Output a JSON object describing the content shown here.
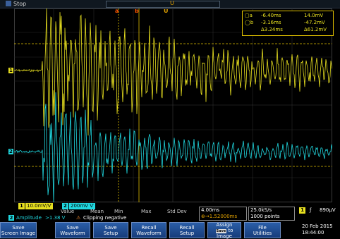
{
  "status": {
    "run_state": "Stop",
    "record_marker": "U"
  },
  "cursor_tags": [
    "a",
    "b",
    "U"
  ],
  "cursor_readout": {
    "row1": {
      "a": "-6.40ms",
      "b": "14.0mV"
    },
    "row2": {
      "a": "-3.16ms",
      "b": "-47.2mV"
    },
    "row3": {
      "a": "Δ3.24ms",
      "b": "Δ61.2mV"
    }
  },
  "channels": {
    "ch1": {
      "marker": "1",
      "scale": "10.0mV/Ѵ",
      "color": "#e8e020"
    },
    "ch2": {
      "marker": "2",
      "scale": "200mV Ѵ",
      "color": "#20d8e0"
    }
  },
  "measurements": {
    "headers": [
      "Value",
      "Mean",
      "Min",
      "Max",
      "Std Dev"
    ],
    "row": {
      "channel": "2",
      "name": "Amplitude",
      "value": ">1.38 V",
      "warning_icon": "⚠",
      "warning": "Clipping negative"
    }
  },
  "horizontal": {
    "time_div": "4.00ms",
    "delay": "⊕→1.52000ms"
  },
  "acquisition": {
    "sample_rate": "25.0kS/s",
    "record_length": "1000 points"
  },
  "trigger": {
    "channel": "1",
    "slope": "ƒ",
    "level": "890μV"
  },
  "softkeys": [
    {
      "line1": "Save",
      "line2": "Screen Image"
    },
    {
      "line1": "Save",
      "line2": "Waveform"
    },
    {
      "line1": "Save",
      "line2": "Setup"
    },
    {
      "line1": "Recall",
      "line2": "Waveform"
    },
    {
      "line1": "Recall",
      "line2": "Setup"
    },
    {
      "line1": "Assign",
      "line2": "to",
      "line3": "Image",
      "mini": "Save"
    },
    {
      "line1": "File",
      "line2": "Utilities"
    }
  ],
  "datetime": {
    "date": "20 Feb 2015",
    "time": "18:44:00"
  }
}
